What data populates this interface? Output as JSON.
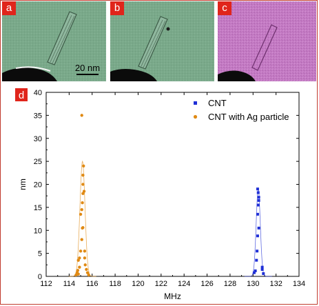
{
  "panels": {
    "a_label": "a",
    "b_label": "b",
    "c_label": "c",
    "d_label": "d",
    "scale_bar_label": "20 nm"
  },
  "colors": {
    "label_bg": "#e0251b",
    "tem_green": "#7aa98a",
    "tem_pink": "#c47bc4",
    "cnt": "#1f2fd6",
    "cnt_ag": "#e08a14",
    "frame": "#c0392b"
  },
  "chart_data": {
    "type": "scatter",
    "xlabel": "MHz",
    "ylabel": "nm",
    "xlim": [
      112,
      134
    ],
    "ylim": [
      0,
      40
    ],
    "x_ticks": [
      112,
      114,
      116,
      118,
      120,
      122,
      124,
      126,
      128,
      130,
      132,
      134
    ],
    "y_ticks": [
      0,
      5,
      10,
      15,
      20,
      25,
      30,
      35,
      40
    ],
    "legend_position": "top-right",
    "grid": false,
    "series": [
      {
        "name": "CNT",
        "marker": "square",
        "color": "#1f2fd6",
        "points": [
          [
            130.1,
            0.8
          ],
          [
            130.2,
            1.2
          ],
          [
            130.3,
            3.5
          ],
          [
            130.35,
            5.5
          ],
          [
            130.4,
            8.8
          ],
          [
            130.5,
            10.5
          ],
          [
            130.4,
            13.5
          ],
          [
            130.45,
            15.5
          ],
          [
            130.5,
            16.5
          ],
          [
            130.5,
            17.2
          ],
          [
            130.45,
            18.2
          ],
          [
            130.4,
            19.0
          ],
          [
            130.8,
            2.0
          ],
          [
            130.8,
            1.5
          ],
          [
            130.9,
            0.6
          ]
        ]
      },
      {
        "name": "CNT with Ag particle",
        "marker": "circle",
        "color": "#e08a14",
        "points": [
          [
            114.6,
            0.3
          ],
          [
            114.7,
            0.8
          ],
          [
            114.75,
            1.3
          ],
          [
            114.8,
            3.5
          ],
          [
            114.9,
            4.0
          ],
          [
            115.0,
            5.5
          ],
          [
            115.1,
            8.0
          ],
          [
            115.15,
            10.5
          ],
          [
            115.2,
            10.6
          ],
          [
            115.0,
            13.5
          ],
          [
            115.1,
            14.5
          ],
          [
            115.15,
            16.0
          ],
          [
            115.2,
            18.0
          ],
          [
            115.3,
            18.5
          ],
          [
            115.2,
            20.0
          ],
          [
            115.2,
            22.0
          ],
          [
            115.25,
            24.0
          ],
          [
            115.1,
            35.0
          ],
          [
            115.35,
            4.0
          ],
          [
            115.4,
            2.5
          ],
          [
            115.5,
            1.5
          ],
          [
            115.6,
            0.8
          ],
          [
            115.7,
            0.3
          ],
          [
            114.9,
            2.0
          ],
          [
            115.35,
            5.5
          ],
          [
            114.8,
            0.5
          ]
        ]
      }
    ]
  }
}
